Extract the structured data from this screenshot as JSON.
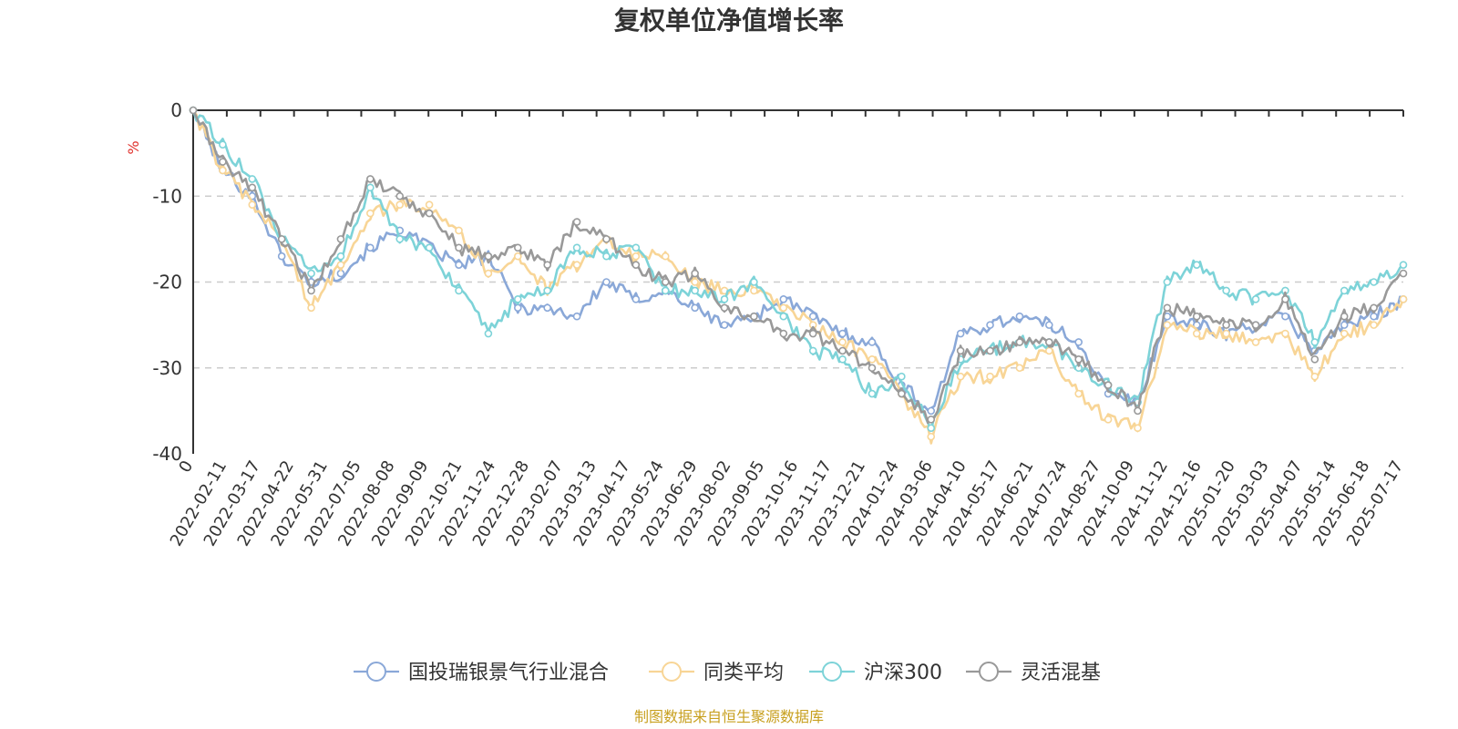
{
  "chart_data": {
    "type": "line",
    "title": "复权单位净值增长率",
    "ylabel": "%",
    "ylim": [
      -40,
      0
    ],
    "yticks": [
      0,
      -10,
      -20,
      -30,
      -40
    ],
    "grid": "horizontal dashed",
    "legend_position": "bottom",
    "source": "制图数据来自恒生聚源数据库",
    "x_tick_labels": [
      "0",
      "2022-02-11",
      "2022-03-17",
      "2022-04-22",
      "2022-05-31",
      "2022-07-05",
      "2022-08-08",
      "2022-09-09",
      "2022-10-21",
      "2022-11-24",
      "2022-12-28",
      "2023-02-07",
      "2023-03-13",
      "2023-04-17",
      "2023-05-24",
      "2023-06-29",
      "2023-08-02",
      "2023-09-05",
      "2023-10-16",
      "2023-11-17",
      "2023-12-21",
      "2024-01-24",
      "2024-03-06",
      "2024-04-10",
      "2024-05-17",
      "2024-06-21",
      "2024-07-24",
      "2024-08-27",
      "2024-10-09",
      "2024-11-12",
      "2024-12-16",
      "2025-01-20",
      "2025-03-03",
      "2025-04-07",
      "2025-05-14",
      "2025-06-18",
      "2025-07-17"
    ],
    "series": [
      {
        "name": "国投瑞银景气行业混合",
        "color": "#8aa8d8",
        "values": [
          0,
          -7,
          -10,
          -17,
          -20,
          -19,
          -16,
          -14,
          -16,
          -18,
          -17,
          -23,
          -23,
          -24,
          -20,
          -22,
          -21,
          -23,
          -25,
          -24,
          -22,
          -24,
          -26,
          -27,
          -32,
          -35,
          -26,
          -25,
          -24,
          -25,
          -27,
          -33,
          -34,
          -24,
          -25,
          -26,
          -25,
          -24,
          -28,
          -25,
          -24,
          -22
        ]
      },
      {
        "name": "同类平均",
        "color": "#f8d596",
        "values": [
          0,
          -7,
          -11,
          -15,
          -23,
          -18,
          -12,
          -11,
          -11,
          -14,
          -19,
          -17,
          -21,
          -18,
          -15,
          -17,
          -17,
          -20,
          -21,
          -21,
          -23,
          -25,
          -27,
          -29,
          -33,
          -38,
          -31,
          -31,
          -30,
          -28,
          -33,
          -36,
          -37,
          -25,
          -26,
          -26,
          -27,
          -26,
          -31,
          -26,
          -25,
          -22
        ]
      },
      {
        "name": "沪深300",
        "color": "#7dd3d8",
        "values": [
          0,
          -4,
          -8,
          -15,
          -19,
          -17,
          -9,
          -15,
          -16,
          -21,
          -26,
          -22,
          -21,
          -16,
          -17,
          -16,
          -21,
          -21,
          -22,
          -20,
          -24,
          -28,
          -29,
          -33,
          -31,
          -37,
          -29,
          -28,
          -27,
          -27,
          -30,
          -32,
          -34,
          -20,
          -18,
          -21,
          -22,
          -21,
          -27,
          -21,
          -20,
          -18
        ]
      },
      {
        "name": "灵活混基",
        "color": "#999999",
        "values": [
          0,
          -6,
          -9,
          -15,
          -21,
          -15,
          -8,
          -10,
          -12,
          -16,
          -17,
          -16,
          -18,
          -13,
          -15,
          -18,
          -20,
          -19,
          -23,
          -24,
          -26,
          -26,
          -28,
          -30,
          -33,
          -36,
          -28,
          -28,
          -27,
          -27,
          -29,
          -32,
          -35,
          -23,
          -24,
          -25,
          -25,
          -22,
          -29,
          -24,
          -23,
          -19
        ]
      }
    ]
  }
}
